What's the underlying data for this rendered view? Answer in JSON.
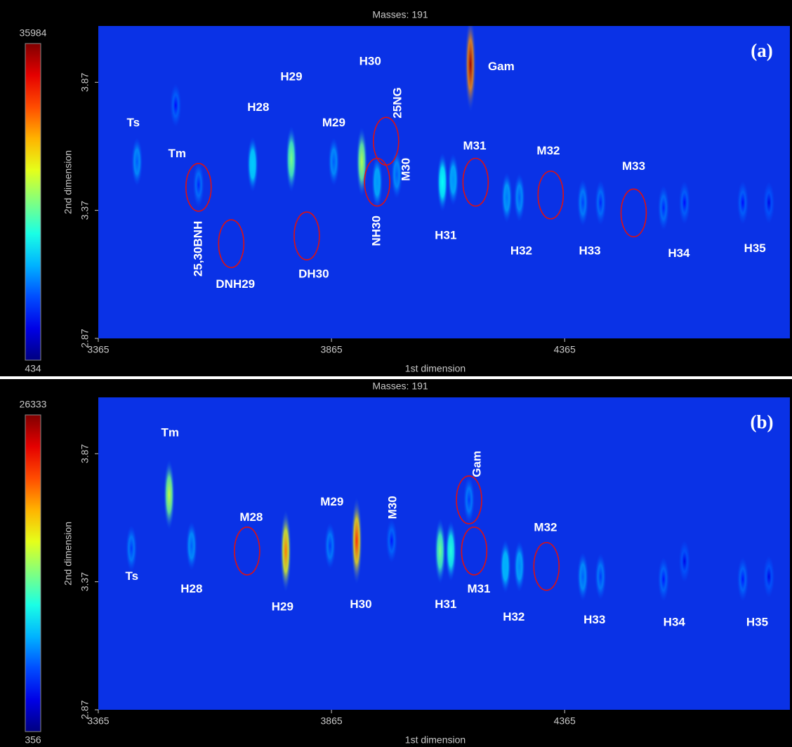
{
  "chart_data": [
    {
      "type": "contour",
      "title": "Masses: 191",
      "panel_label": "(a)",
      "xlabel": "1st dimension",
      "ylabel": "2nd dimension",
      "xlim": [
        3365,
        4848
      ],
      "xticks": [
        3365,
        3865,
        4365
      ],
      "ylim": [
        2.87,
        4.09
      ],
      "yticks": [
        2.87,
        3.37,
        3.87
      ],
      "zlim": [
        434,
        35984
      ],
      "colormap": "jet",
      "peaks": {
        "x": [
          3448,
          3531,
          3580,
          3696,
          3779,
          3870,
          3930,
          3963,
          4005,
          4103,
          4126,
          4163,
          4241,
          4268,
          4404,
          4442,
          4577,
          4622,
          4747,
          4803
        ],
        "y": [
          3.56,
          3.78,
          3.47,
          3.55,
          3.57,
          3.56,
          3.56,
          3.48,
          3.51,
          3.48,
          3.49,
          3.94,
          3.42,
          3.42,
          3.4,
          3.4,
          3.38,
          3.4,
          3.4,
          3.4
        ],
        "intensity": [
          8000,
          5000,
          6000,
          12000,
          18000,
          8000,
          20000,
          10000,
          8000,
          14000,
          10000,
          35000,
          9000,
          8000,
          7000,
          6000,
          6000,
          5000,
          5000,
          4000
        ]
      },
      "annotations": [
        {
          "text": "Ts",
          "x": 3440,
          "y": 3.71
        },
        {
          "text": "Tm",
          "x": 3534,
          "y": 3.59
        },
        {
          "text": "H28",
          "x": 3708,
          "y": 3.77
        },
        {
          "text": "H29",
          "x": 3779,
          "y": 3.89
        },
        {
          "text": "H30",
          "x": 3948,
          "y": 3.95
        },
        {
          "text": "Gam",
          "x": 4229,
          "y": 3.93
        },
        {
          "text": "M29",
          "x": 3870,
          "y": 3.71
        },
        {
          "text": "25NG",
          "x": 4008,
          "y": 3.79,
          "vertical": true
        },
        {
          "text": "M30",
          "x": 4026,
          "y": 3.53,
          "vertical": true
        },
        {
          "text": "M31",
          "x": 4172,
          "y": 3.62
        },
        {
          "text": "M32",
          "x": 4330,
          "y": 3.6
        },
        {
          "text": "M33",
          "x": 4513,
          "y": 3.54
        },
        {
          "text": "25,30BNH",
          "x": 3580,
          "y": 3.22,
          "vertical": true
        },
        {
          "text": "DNH29",
          "x": 3659,
          "y": 3.08
        },
        {
          "text": "DH30",
          "x": 3827,
          "y": 3.12
        },
        {
          "text": "NH30",
          "x": 3963,
          "y": 3.29,
          "vertical": true
        },
        {
          "text": "H31",
          "x": 4110,
          "y": 3.27
        },
        {
          "text": "H32",
          "x": 4272,
          "y": 3.21
        },
        {
          "text": "H33",
          "x": 4419,
          "y": 3.21
        },
        {
          "text": "H34",
          "x": 4610,
          "y": 3.2
        },
        {
          "text": "H35",
          "x": 4773,
          "y": 3.22
        }
      ],
      "highlights": {
        "x": [
          3580,
          3650,
          3812,
          3963,
          3982,
          4174,
          4335,
          4513
        ],
        "y": [
          3.46,
          3.24,
          3.27,
          3.48,
          3.64,
          3.48,
          3.43,
          3.36
        ]
      }
    },
    {
      "type": "contour",
      "title": "Masses: 191",
      "panel_label": "(b)",
      "xlabel": "1st dimension",
      "ylabel": "2nd dimension",
      "xlim": [
        3365,
        4848
      ],
      "xticks": [
        3365,
        3865,
        4365
      ],
      "ylim": [
        2.87,
        4.09
      ],
      "yticks": [
        2.87,
        3.37,
        3.87
      ],
      "zlim": [
        356,
        26333
      ],
      "colormap": "jet",
      "peaks": {
        "x": [
          3436,
          3517,
          3565,
          3767,
          3862,
          3919,
          3994,
          4098,
          4121,
          4160,
          4238,
          4268,
          4404,
          4442,
          4577,
          4622,
          4747,
          4803
        ],
        "y": [
          3.5,
          3.71,
          3.51,
          3.49,
          3.51,
          3.53,
          3.53,
          3.49,
          3.49,
          3.69,
          3.43,
          3.43,
          3.39,
          3.39,
          3.38,
          3.45,
          3.38,
          3.39
        ],
        "intensity": [
          5000,
          15000,
          6000,
          20000,
          5000,
          22000,
          4000,
          13000,
          11000,
          5000,
          8000,
          7000,
          6000,
          5000,
          4000,
          3000,
          4000,
          3000
        ]
      },
      "annotations": [
        {
          "text": "Tm",
          "x": 3519,
          "y": 3.95
        },
        {
          "text": "Ts",
          "x": 3437,
          "y": 3.39
        },
        {
          "text": "H28",
          "x": 3565,
          "y": 3.34
        },
        {
          "text": "M28",
          "x": 3693,
          "y": 3.62
        },
        {
          "text": "H29",
          "x": 3760,
          "y": 3.27
        },
        {
          "text": "M29",
          "x": 3866,
          "y": 3.68
        },
        {
          "text": "M30",
          "x": 3997,
          "y": 3.66,
          "vertical": true
        },
        {
          "text": "H30",
          "x": 3928,
          "y": 3.28
        },
        {
          "text": "Gam",
          "x": 4178,
          "y": 3.83,
          "vertical": true
        },
        {
          "text": "H31",
          "x": 4110,
          "y": 3.28
        },
        {
          "text": "M31",
          "x": 4181,
          "y": 3.34
        },
        {
          "text": "H32",
          "x": 4256,
          "y": 3.23
        },
        {
          "text": "M32",
          "x": 4324,
          "y": 3.58
        },
        {
          "text": "H33",
          "x": 4429,
          "y": 3.22
        },
        {
          "text": "H34",
          "x": 4600,
          "y": 3.21
        },
        {
          "text": "H35",
          "x": 4778,
          "y": 3.21
        }
      ],
      "highlights": {
        "x": [
          3684,
          4160,
          4171,
          4326
        ],
        "y": [
          3.49,
          3.69,
          3.49,
          3.43
        ]
      }
    }
  ]
}
